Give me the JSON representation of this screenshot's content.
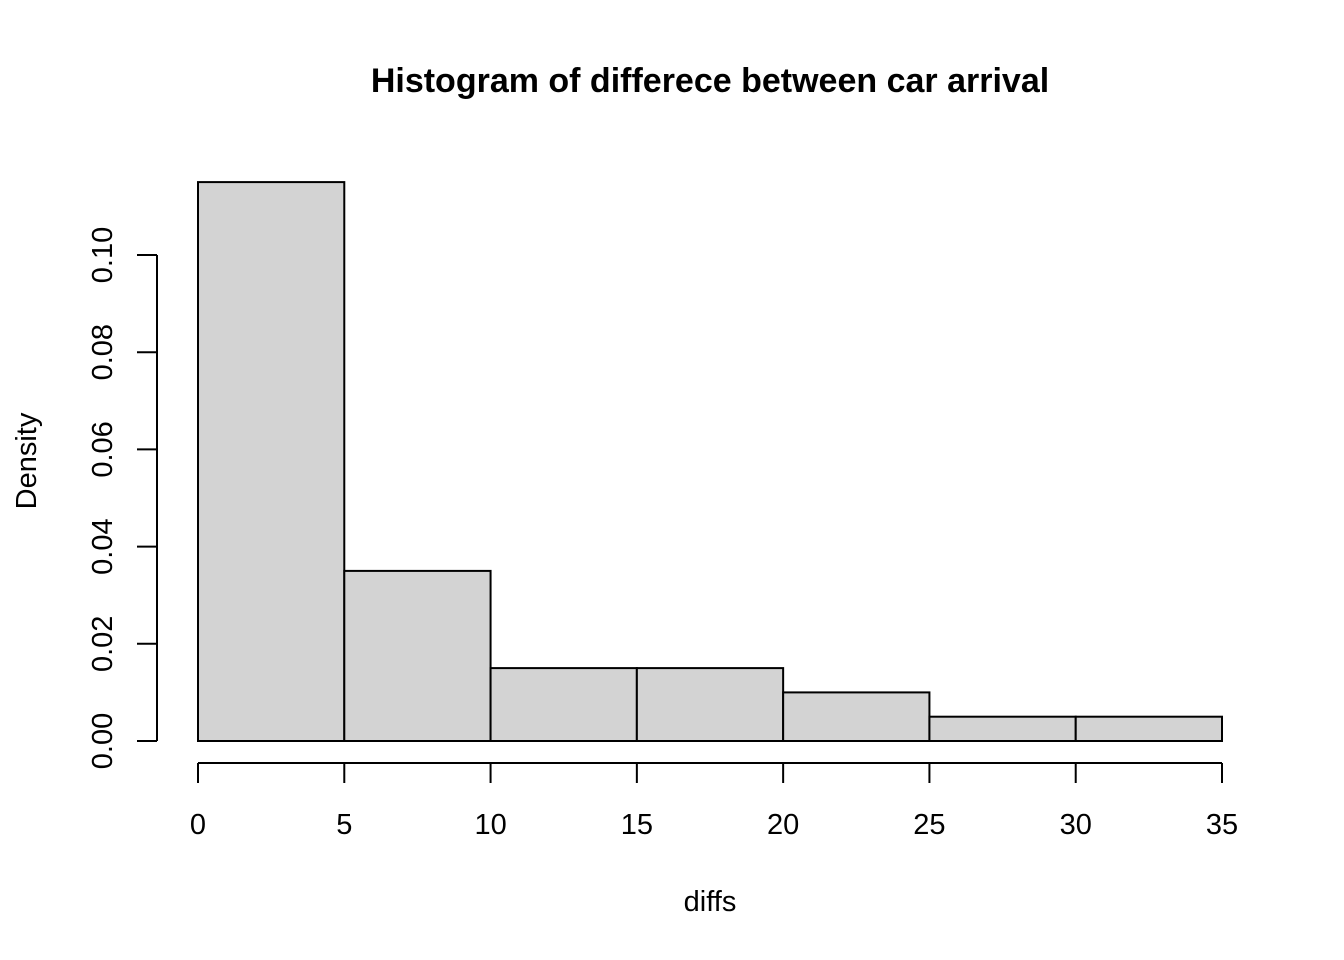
{
  "chart_data": {
    "type": "bar",
    "title": "Histogram of differece between car arrival",
    "xlabel": "diffs",
    "ylabel": "Density",
    "bins": [
      {
        "from": 0,
        "to": 5,
        "density": 0.115
      },
      {
        "from": 5,
        "to": 10,
        "density": 0.035
      },
      {
        "from": 10,
        "to": 15,
        "density": 0.015
      },
      {
        "from": 15,
        "to": 20,
        "density": 0.015
      },
      {
        "from": 20,
        "to": 25,
        "density": 0.01
      },
      {
        "from": 25,
        "to": 30,
        "density": 0.005
      },
      {
        "from": 30,
        "to": 35,
        "density": 0.005
      }
    ],
    "xlim": [
      0,
      35
    ],
    "ylim": [
      0,
      0.115
    ],
    "x_ticks": [
      "0",
      "5",
      "10",
      "15",
      "20",
      "25",
      "30",
      "35"
    ],
    "y_ticks": [
      "0.00",
      "0.02",
      "0.04",
      "0.06",
      "0.08",
      "0.10"
    ],
    "grid": false,
    "colors": {
      "bar_fill": "#d3d3d3",
      "bar_stroke": "#000000"
    }
  }
}
